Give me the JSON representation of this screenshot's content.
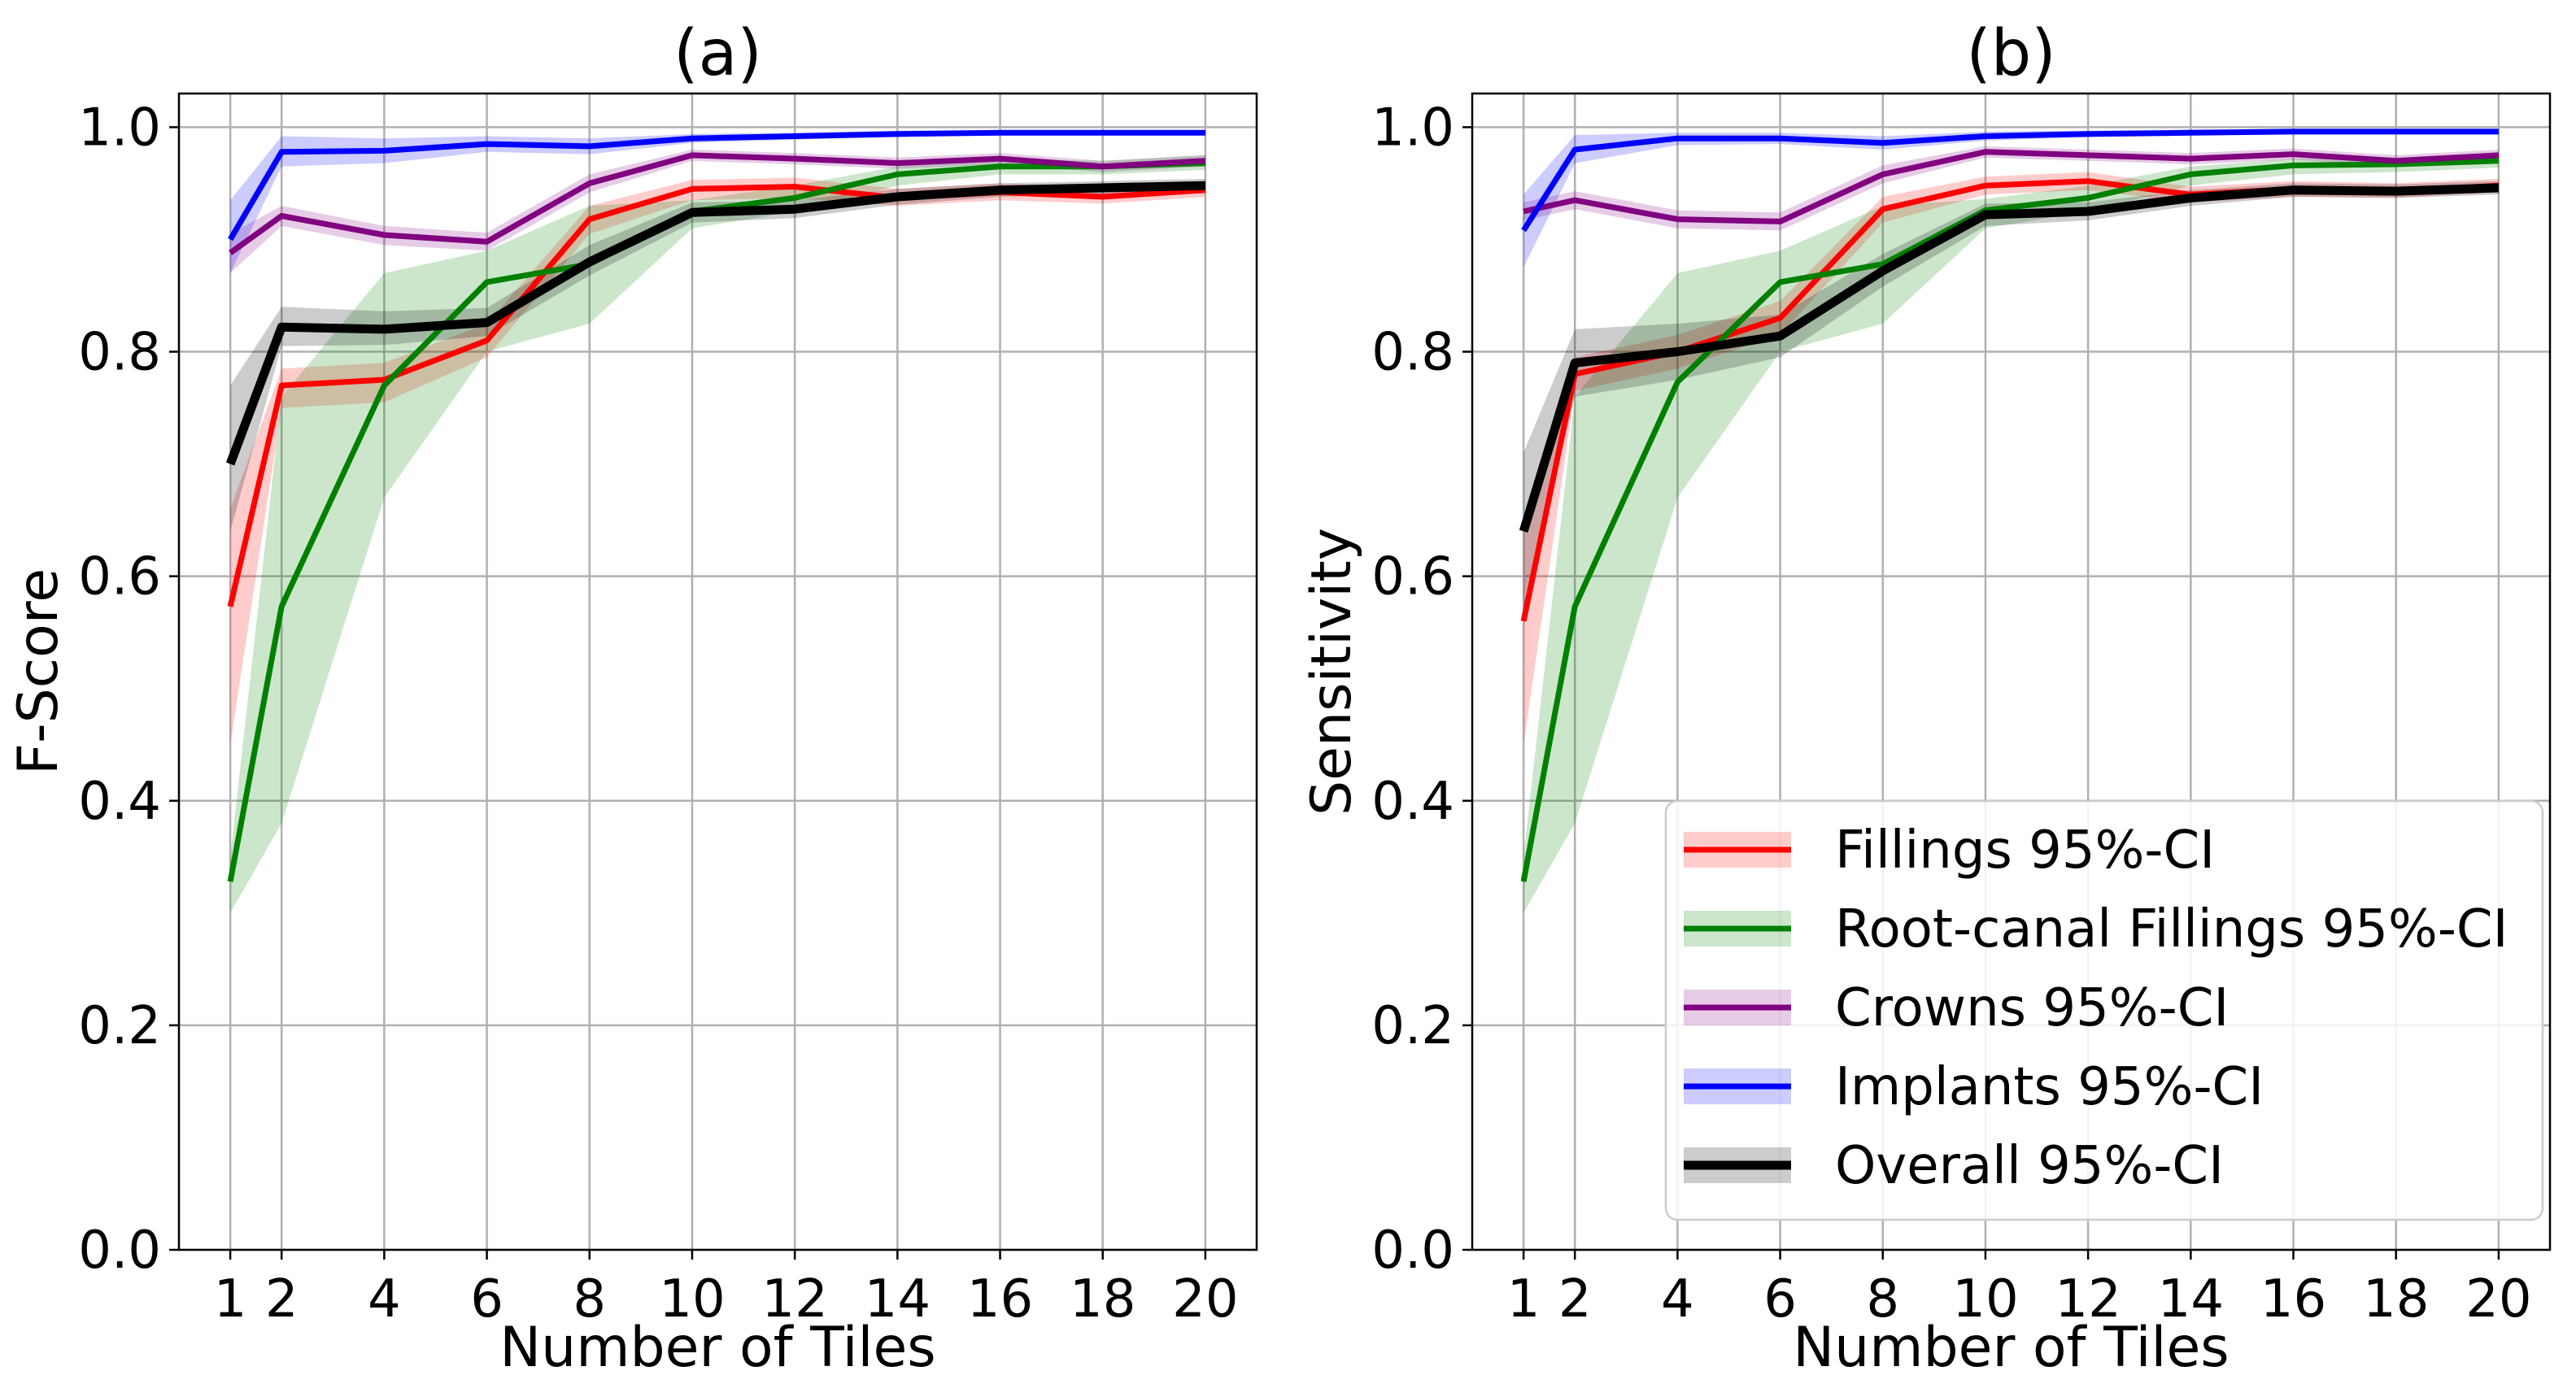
{
  "chart_data": [
    {
      "type": "line",
      "title": "(a)",
      "xlabel": "Number of Tiles",
      "ylabel": "F-Score",
      "xlim": [
        0,
        21
      ],
      "ylim": [
        0.0,
        1.03
      ],
      "xticks": [
        1,
        2,
        4,
        6,
        8,
        10,
        12,
        14,
        16,
        18,
        20
      ],
      "xtick_labels": [
        "1",
        "2",
        "4",
        "6",
        "8",
        "10",
        "12",
        "14",
        "16",
        "18",
        "20"
      ],
      "yticks": [
        0.0,
        0.2,
        0.4,
        0.6,
        0.8,
        1.0
      ],
      "ytick_labels": [
        "0.0",
        "0.2",
        "0.4",
        "0.6",
        "0.8",
        "1.0"
      ],
      "grid": true,
      "x": [
        1,
        2,
        4,
        6,
        8,
        10,
        12,
        14,
        16,
        18,
        20
      ],
      "series": [
        {
          "key": "fillings",
          "values": [
            0.573,
            0.77,
            0.775,
            0.81,
            0.918,
            0.945,
            0.947,
            0.937,
            0.942,
            0.938,
            0.944
          ],
          "lower": [
            0.45,
            0.75,
            0.755,
            0.795,
            0.905,
            0.935,
            0.937,
            0.93,
            0.935,
            0.932,
            0.938
          ],
          "upper": [
            0.66,
            0.785,
            0.79,
            0.825,
            0.93,
            0.953,
            0.955,
            0.945,
            0.95,
            0.945,
            0.95
          ]
        },
        {
          "key": "root",
          "values": [
            0.328,
            0.573,
            0.77,
            0.862,
            0.878,
            0.925,
            0.937,
            0.958,
            0.965,
            0.965,
            0.968
          ],
          "lower": [
            0.3,
            0.38,
            0.67,
            0.8,
            0.825,
            0.91,
            0.925,
            0.948,
            0.958,
            0.958,
            0.962
          ],
          "upper": [
            0.35,
            0.76,
            0.87,
            0.89,
            0.93,
            0.935,
            0.948,
            0.965,
            0.972,
            0.97,
            0.975
          ]
        },
        {
          "key": "crowns",
          "values": [
            0.888,
            0.921,
            0.904,
            0.898,
            0.95,
            0.975,
            0.972,
            0.968,
            0.972,
            0.965,
            0.97
          ],
          "lower": [
            0.87,
            0.912,
            0.895,
            0.89,
            0.942,
            0.97,
            0.967,
            0.963,
            0.967,
            0.96,
            0.965
          ],
          "upper": [
            0.905,
            0.93,
            0.912,
            0.906,
            0.958,
            0.98,
            0.977,
            0.973,
            0.977,
            0.97,
            0.975
          ]
        },
        {
          "key": "implants",
          "values": [
            0.9,
            0.978,
            0.979,
            0.985,
            0.983,
            0.99,
            0.992,
            0.994,
            0.995,
            0.995,
            0.995
          ],
          "lower": [
            0.87,
            0.965,
            0.968,
            0.978,
            0.976,
            0.986,
            0.989,
            0.991,
            0.993,
            0.993,
            0.993
          ],
          "upper": [
            0.935,
            0.992,
            0.99,
            0.992,
            0.99,
            0.994,
            0.995,
            0.997,
            0.997,
            0.997,
            0.997
          ]
        },
        {
          "key": "overall",
          "values": [
            0.7,
            0.822,
            0.82,
            0.826,
            0.88,
            0.924,
            0.927,
            0.938,
            0.944,
            0.946,
            0.948
          ],
          "lower": [
            0.64,
            0.805,
            0.806,
            0.814,
            0.868,
            0.915,
            0.919,
            0.931,
            0.938,
            0.94,
            0.942
          ],
          "upper": [
            0.77,
            0.84,
            0.836,
            0.839,
            0.895,
            0.933,
            0.935,
            0.945,
            0.95,
            0.952,
            0.954
          ]
        }
      ]
    },
    {
      "type": "line",
      "title": "(b)",
      "xlabel": "Number of Tiles",
      "ylabel": "Sensitivity",
      "xlim": [
        0,
        21
      ],
      "ylim": [
        0.0,
        1.03
      ],
      "xticks": [
        1,
        2,
        4,
        6,
        8,
        10,
        12,
        14,
        16,
        18,
        20
      ],
      "xtick_labels": [
        "1",
        "2",
        "4",
        "6",
        "8",
        "10",
        "12",
        "14",
        "16",
        "18",
        "20"
      ],
      "yticks": [
        0.0,
        0.2,
        0.4,
        0.6,
        0.8,
        1.0
      ],
      "ytick_labels": [
        "0.0",
        "0.2",
        "0.4",
        "0.6",
        "0.8",
        "1.0"
      ],
      "grid": true,
      "legend_position": "lower-right",
      "x": [
        1,
        2,
        4,
        6,
        8,
        10,
        12,
        14,
        16,
        18,
        20
      ],
      "series": [
        {
          "key": "fillings",
          "name": "Fillings 95%-CI",
          "values": [
            0.56,
            0.78,
            0.8,
            0.83,
            0.927,
            0.948,
            0.952,
            0.94,
            0.945,
            0.943,
            0.948
          ],
          "lower": [
            0.45,
            0.765,
            0.785,
            0.815,
            0.915,
            0.94,
            0.944,
            0.933,
            0.938,
            0.937,
            0.942
          ],
          "upper": [
            0.65,
            0.795,
            0.815,
            0.845,
            0.938,
            0.956,
            0.96,
            0.947,
            0.952,
            0.95,
            0.954
          ]
        },
        {
          "key": "root",
          "name": "Root-canal Fillings 95%-CI",
          "values": [
            0.328,
            0.573,
            0.773,
            0.862,
            0.878,
            0.926,
            0.937,
            0.958,
            0.966,
            0.967,
            0.97
          ],
          "lower": [
            0.3,
            0.38,
            0.67,
            0.8,
            0.825,
            0.91,
            0.925,
            0.948,
            0.958,
            0.96,
            0.964
          ],
          "upper": [
            0.35,
            0.76,
            0.87,
            0.89,
            0.93,
            0.936,
            0.948,
            0.965,
            0.972,
            0.972,
            0.976
          ]
        },
        {
          "key": "crowns",
          "name": "Crowns 95%-CI",
          "values": [
            0.925,
            0.935,
            0.918,
            0.916,
            0.958,
            0.978,
            0.975,
            0.972,
            0.976,
            0.97,
            0.975
          ],
          "lower": [
            0.917,
            0.927,
            0.91,
            0.908,
            0.95,
            0.973,
            0.97,
            0.967,
            0.971,
            0.965,
            0.97
          ],
          "upper": [
            0.933,
            0.943,
            0.926,
            0.924,
            0.966,
            0.983,
            0.98,
            0.977,
            0.981,
            0.975,
            0.98
          ]
        },
        {
          "key": "implants",
          "name": "Implants 95%-CI",
          "values": [
            0.908,
            0.98,
            0.99,
            0.99,
            0.986,
            0.992,
            0.994,
            0.995,
            0.996,
            0.996,
            0.996
          ],
          "lower": [
            0.875,
            0.968,
            0.984,
            0.985,
            0.98,
            0.988,
            0.991,
            0.993,
            0.994,
            0.994,
            0.994
          ],
          "upper": [
            0.94,
            0.993,
            0.995,
            0.995,
            0.992,
            0.996,
            0.997,
            0.998,
            0.998,
            0.998,
            0.998
          ]
        },
        {
          "key": "overall",
          "name": "Overall 95%-CI",
          "values": [
            0.64,
            0.79,
            0.8,
            0.814,
            0.872,
            0.922,
            0.925,
            0.937,
            0.944,
            0.943,
            0.946
          ],
          "lower": [
            0.57,
            0.76,
            0.775,
            0.795,
            0.858,
            0.912,
            0.917,
            0.93,
            0.938,
            0.937,
            0.94
          ],
          "upper": [
            0.71,
            0.82,
            0.825,
            0.833,
            0.887,
            0.932,
            0.933,
            0.944,
            0.95,
            0.949,
            0.952
          ]
        }
      ]
    }
  ],
  "colors": {
    "fillings": "#ff0000",
    "root": "#008000",
    "crowns": "#800080",
    "implants": "#0000ff",
    "overall": "#000000"
  }
}
